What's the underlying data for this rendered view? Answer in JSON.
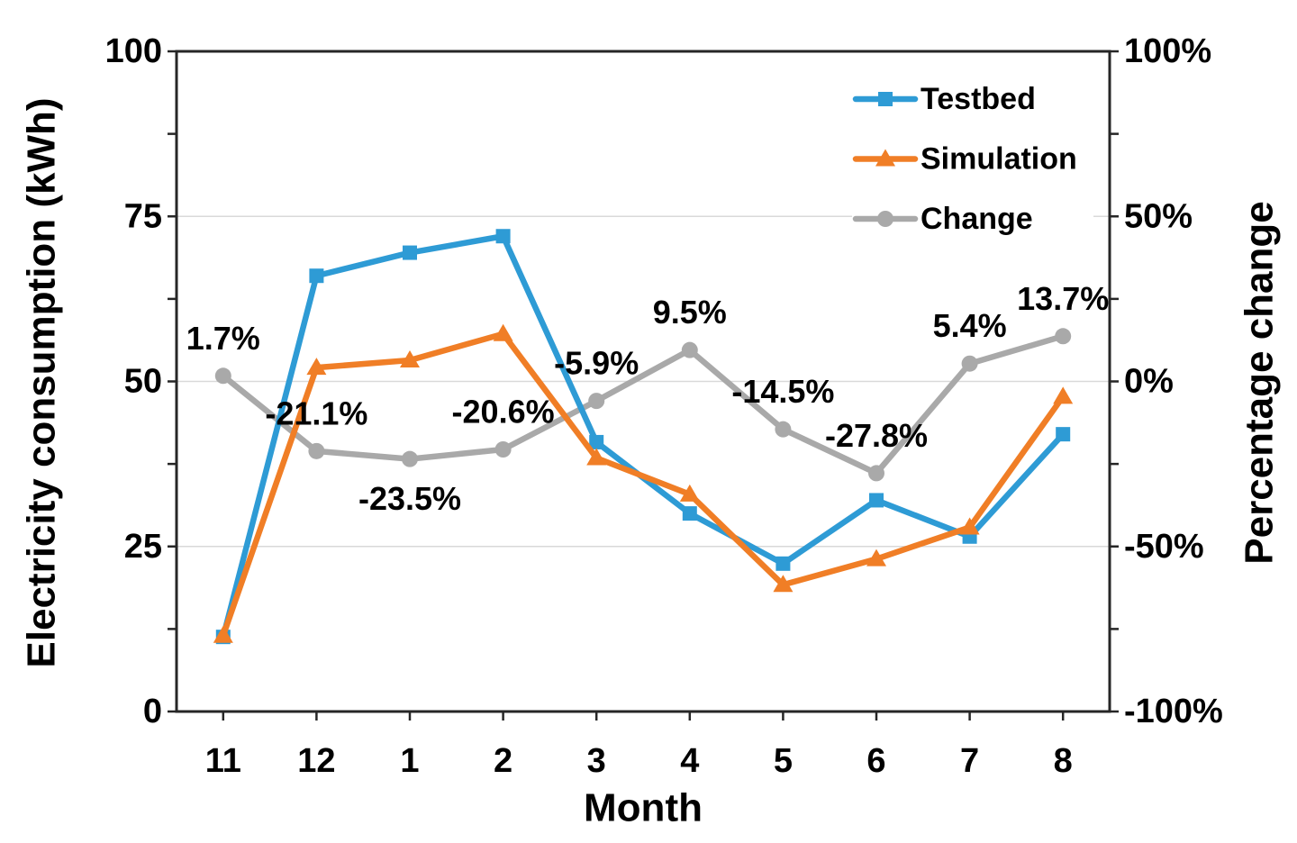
{
  "chart_data": {
    "type": "line",
    "title": "",
    "xlabel": "Month",
    "ylabel_left": "Electricity consumption (kWh)",
    "ylabel_right": "Percentage change",
    "categories": [
      "11",
      "12",
      "1",
      "2",
      "3",
      "4",
      "5",
      "6",
      "7",
      "8"
    ],
    "series": [
      {
        "name": "Testbed",
        "axis": "left",
        "marker": "square",
        "color": "#2E9BD5",
        "values": [
          11.3,
          66.0,
          69.5,
          72.0,
          40.8,
          30.0,
          22.4,
          32.0,
          26.5,
          42.0
        ]
      },
      {
        "name": "Simulation",
        "axis": "left",
        "marker": "triangle",
        "color": "#F07E26",
        "values": [
          11.5,
          52.1,
          53.2,
          57.2,
          38.4,
          32.9,
          19.2,
          23.1,
          27.9,
          47.7
        ]
      },
      {
        "name": "Change",
        "axis": "right",
        "marker": "circle",
        "color": "#A9A9A9",
        "values": [
          1.7,
          -21.1,
          -23.5,
          -20.6,
          -5.9,
          9.5,
          -14.5,
          -27.8,
          5.4,
          13.7
        ],
        "labels": [
          "1.7%",
          "-21.1%",
          "-23.5%",
          "-20.6%",
          "-5.9%",
          "9.5%",
          "-14.5%",
          "-27.8%",
          "5.4%",
          "13.7%"
        ],
        "label_positions": [
          "above",
          "above",
          "below",
          "above",
          "above",
          "above",
          "above",
          "above",
          "above",
          "above"
        ]
      }
    ],
    "left_axis": {
      "min": 0,
      "max": 100,
      "ticks": [
        "0",
        "25",
        "50",
        "75",
        "100"
      ]
    },
    "right_axis": {
      "min": -100,
      "max": 100,
      "ticks": [
        "-100%",
        "-50%",
        "0%",
        "50%",
        "100%"
      ]
    },
    "legend": {
      "position": "inside-top-right",
      "entries": [
        "Testbed",
        "Simulation",
        "Change"
      ]
    },
    "grid": true,
    "colors": {
      "gridline": "#D9D9D9",
      "axis_line": "#262626",
      "text": "#000000",
      "background": "#FFFFFF"
    }
  }
}
